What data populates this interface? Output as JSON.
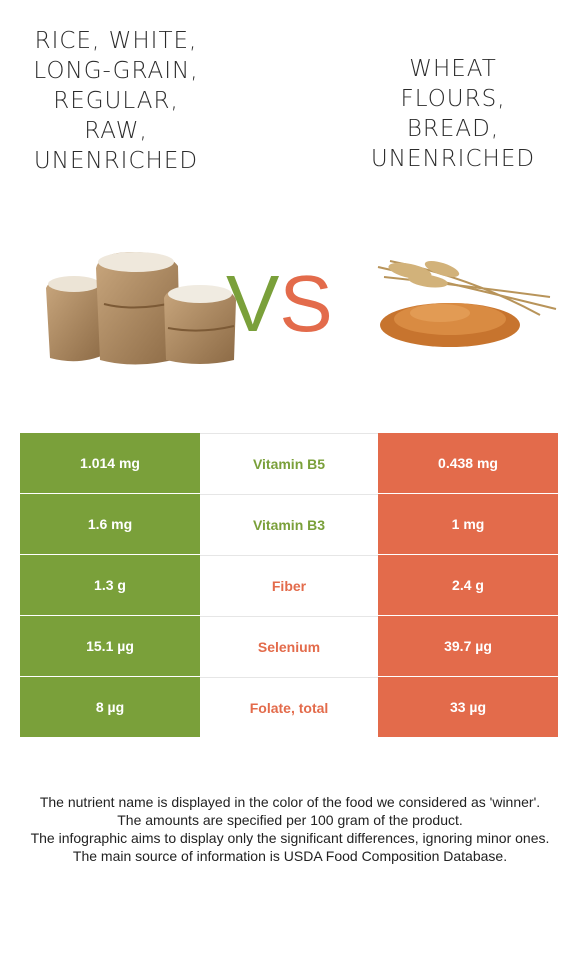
{
  "foods": {
    "left": {
      "title_lines": [
        "RICE, WHITE,",
        "LONG-GRAIN,",
        "REGULAR,",
        "RAW,",
        "UNENRICHED"
      ],
      "color": "#7aa03a",
      "image": "rice-sacks-illustration"
    },
    "right": {
      "title_lines": [
        "WHEAT",
        "FLOURS,",
        "BREAD,",
        "UNENRICHED"
      ],
      "color": "#e36b4b",
      "image": "wheat-grain-illustration"
    }
  },
  "vs": {
    "v": "V",
    "s": "S",
    "v_color": "#7aa03a",
    "s_color": "#e36b4b"
  },
  "comparison": {
    "rows": [
      {
        "nutrient": "Vitamin B5",
        "left": "1.014 mg",
        "right": "0.438 mg",
        "winner": "left"
      },
      {
        "nutrient": "Vitamin B3",
        "left": "1.6 mg",
        "right": "1 mg",
        "winner": "left"
      },
      {
        "nutrient": "Fiber",
        "left": "1.3 g",
        "right": "2.4 g",
        "winner": "right"
      },
      {
        "nutrient": "Selenium",
        "left": "15.1 µg",
        "right": "39.7 µg",
        "winner": "right"
      },
      {
        "nutrient": "Folate, total",
        "left": "8 µg",
        "right": "33 µg",
        "winner": "right"
      }
    ]
  },
  "footnote": {
    "lines": [
      "The nutrient name is displayed in the color of the food we considered as 'winner'.",
      "The amounts are specified per 100 gram of the product.",
      "The infographic aims to display only the significant differences, ignoring minor ones.",
      "The main source of information is USDA Food Composition Database."
    ]
  }
}
